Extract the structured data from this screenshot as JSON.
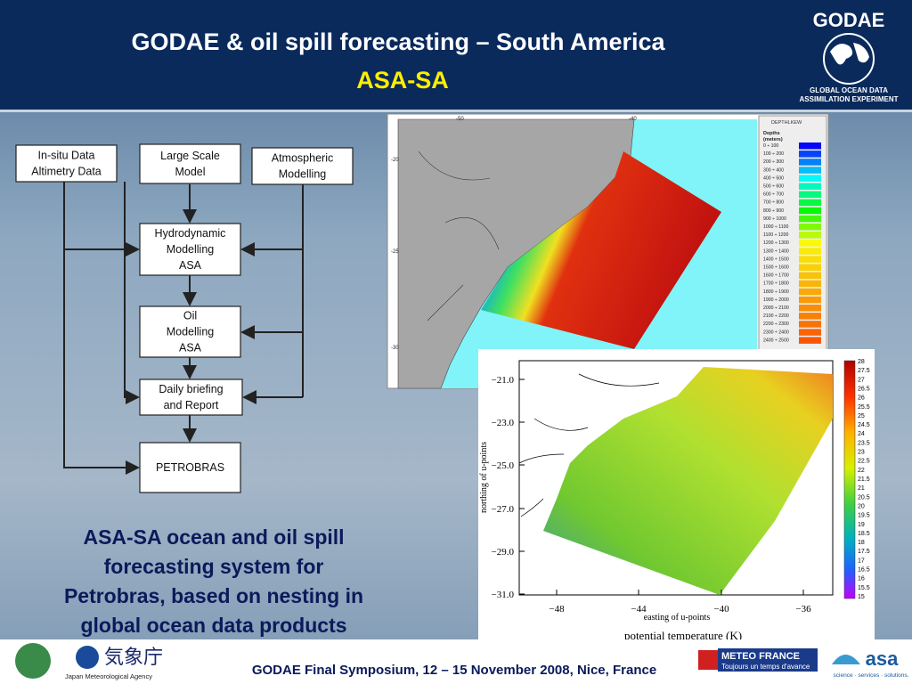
{
  "header": {
    "title": "GODAE & oil spill forecasting – South America",
    "subtitle": "ASA-SA"
  },
  "godae_logo": {
    "name": "GODAE",
    "line1": "GLOBAL OCEAN DATA",
    "line2": "ASSIMILATION EXPERIMENT"
  },
  "flowchart": {
    "nodes": [
      {
        "lines": [
          "In-situ Data",
          "Altimetry Data"
        ]
      },
      {
        "lines": [
          "Large Scale",
          "Model"
        ]
      },
      {
        "lines": [
          "Atmospheric",
          "Modelling"
        ]
      },
      {
        "lines": [
          "Hydrodynamic",
          "Modelling",
          "ASA"
        ]
      },
      {
        "lines": [
          "Oil",
          "Modelling",
          "ASA"
        ]
      },
      {
        "lines": [
          "Daily briefing",
          "and Report"
        ]
      },
      {
        "lines": [
          "PETROBRAS"
        ]
      }
    ]
  },
  "caption": {
    "lines": [
      "ASA-SA ocean and oil spill",
      "forecasting system for",
      "Petrobras, based on nesting in",
      "global ocean data products"
    ]
  },
  "depth_map": {
    "x_ticks": [
      "-50",
      "-40"
    ],
    "y_ticks": [
      "-20",
      "-25",
      "-30"
    ],
    "legend": {
      "title": "DEPTHLKEW",
      "heading": [
        "Depths",
        "(meters)"
      ],
      "entries": [
        "0 ÷ 100",
        "100 ÷ 200",
        "200 ÷ 300",
        "300 ÷ 400",
        "400 ÷ 500",
        "500 ÷ 600",
        "600 ÷ 700",
        "700 ÷ 800",
        "800 ÷ 900",
        "900 ÷ 1000",
        "1000 ÷ 1100",
        "1100 ÷ 1200",
        "1200 ÷ 1300",
        "1300 ÷ 1400",
        "1400 ÷ 1500",
        "1500 ÷ 1600",
        "1600 ÷ 1700",
        "1700 ÷ 1800",
        "1800 ÷ 1900",
        "1900 ÷ 2000",
        "2000 ÷ 2100",
        "2100 ÷ 2200",
        "2200 ÷ 2300",
        "2300 ÷ 2400",
        "2400 ÷ 2500"
      ]
    }
  },
  "temperature_map": {
    "x_ticks": [
      "−48",
      "−44",
      "−40",
      "−36"
    ],
    "y_ticks": [
      "−21.0",
      "−23.0",
      "−25.0",
      "−27.0",
      "−29.0",
      "−31.0"
    ],
    "x_label": "easting of u-points",
    "y_label": "northing of u-points",
    "title": "potential temperature (K)",
    "colorbar": [
      "28",
      "27.5",
      "27",
      "26.5",
      "26",
      "25.5",
      "25",
      "24.5",
      "24",
      "23.5",
      "23",
      "22.5",
      "22",
      "21.5",
      "21",
      "20.5",
      "20",
      "19.5",
      "19",
      "18.5",
      "18",
      "17.5",
      "17",
      "16.5",
      "16",
      "15.5",
      "15"
    ]
  },
  "footer": {
    "text": "GODAE Final Symposium, 12 – 15 November 2008, Nice, France",
    "jma": {
      "name": "気象庁",
      "subtitle": "Japan Meteorological Agency"
    },
    "meteo_france": {
      "name": "METEO FRANCE",
      "tagline": "Toujours un temps d'avance"
    },
    "asa": {
      "name": "asa",
      "tagline": "science · services · solutions."
    }
  }
}
